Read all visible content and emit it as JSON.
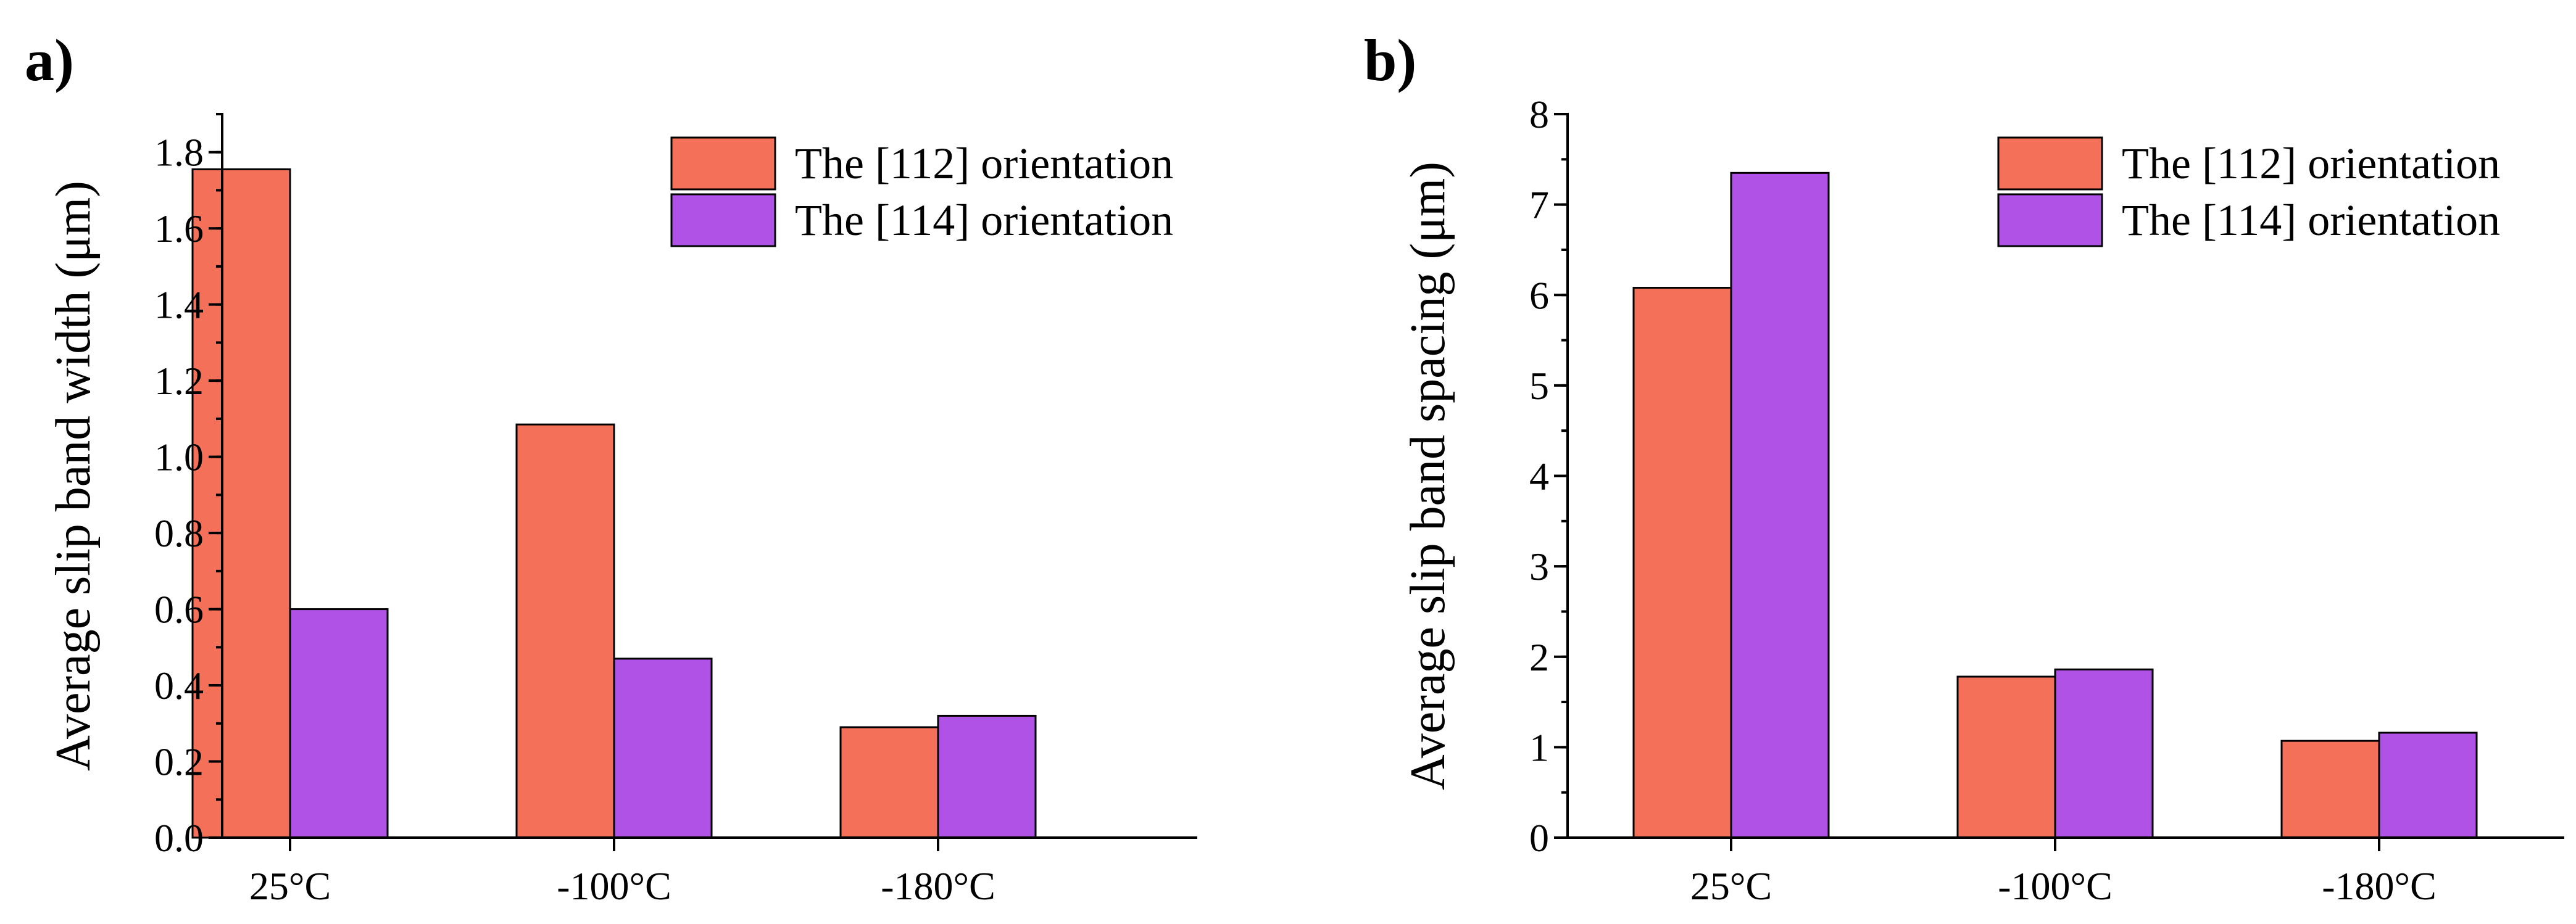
{
  "figure": {
    "panels": [
      "a)",
      "b)"
    ]
  },
  "chart_data": [
    {
      "type": "bar",
      "panel_label": "a)",
      "title": "",
      "xlabel": "",
      "ylabel": "Average slip band width (μm)",
      "categories": [
        "25°C",
        "-100°C",
        "-180°C"
      ],
      "series": [
        {
          "name": "The [112] orientation",
          "color": "#F57058",
          "values": [
            1.755,
            1.085,
            0.29
          ]
        },
        {
          "name": "The [114] orientation",
          "color": "#B152E6",
          "values": [
            0.6,
            0.47,
            0.32
          ]
        }
      ],
      "ylim": [
        0,
        1.9
      ],
      "yticks": [
        0.0,
        0.2,
        0.4,
        0.6,
        0.8,
        1.0,
        1.2,
        1.4,
        1.6,
        1.8
      ],
      "ytick_labels": [
        "0.0",
        "0.2",
        "0.4",
        "0.6",
        "0.8",
        "1.0",
        "1.2",
        "1.4",
        "1.6",
        "1.8"
      ],
      "grid": false,
      "legend": "top-right"
    },
    {
      "type": "bar",
      "panel_label": "b)",
      "title": "",
      "xlabel": "",
      "ylabel": "Average slip band spacing (μm)",
      "categories": [
        "25°C",
        "-100°C",
        "-180°C"
      ],
      "series": [
        {
          "name": "The [112] orientation",
          "color": "#F57058",
          "values": [
            6.08,
            1.78,
            1.07
          ]
        },
        {
          "name": "The [114] orientation",
          "color": "#B152E6",
          "values": [
            7.35,
            1.86,
            1.16
          ]
        }
      ],
      "ylim": [
        0,
        8
      ],
      "yticks": [
        0,
        1,
        2,
        3,
        4,
        5,
        6,
        7,
        8
      ],
      "ytick_labels": [
        "0",
        "1",
        "2",
        "3",
        "4",
        "5",
        "6",
        "7",
        "8"
      ],
      "grid": false,
      "legend": "top-right"
    }
  ]
}
